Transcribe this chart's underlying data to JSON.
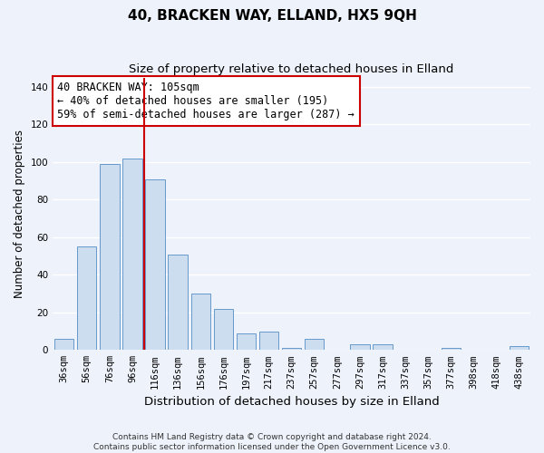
{
  "title": "40, BRACKEN WAY, ELLAND, HX5 9QH",
  "subtitle": "Size of property relative to detached houses in Elland",
  "xlabel": "Distribution of detached houses by size in Elland",
  "ylabel": "Number of detached properties",
  "bar_labels": [
    "36sqm",
    "56sqm",
    "76sqm",
    "96sqm",
    "116sqm",
    "136sqm",
    "156sqm",
    "176sqm",
    "197sqm",
    "217sqm",
    "237sqm",
    "257sqm",
    "277sqm",
    "297sqm",
    "317sqm",
    "337sqm",
    "357sqm",
    "377sqm",
    "398sqm",
    "418sqm",
    "438sqm"
  ],
  "bar_values": [
    6,
    55,
    99,
    102,
    91,
    51,
    30,
    22,
    9,
    10,
    1,
    6,
    0,
    3,
    3,
    0,
    0,
    1,
    0,
    0,
    2
  ],
  "bar_color": "#ccddf0",
  "bar_edge_color": "#6699cc",
  "marker_label": "40 BRACKEN WAY: 105sqm",
  "annotation_line1": "← 40% of detached houses are smaller (195)",
  "annotation_line2": "59% of semi-detached houses are larger (287) →",
  "vline_color": "#cc0000",
  "vline_x": 3.5,
  "ylim": [
    0,
    145
  ],
  "yticks": [
    0,
    20,
    40,
    60,
    80,
    100,
    120,
    140
  ],
  "annotation_box_facecolor": "#ffffff",
  "annotation_box_edgecolor": "#cc0000",
  "footer_line1": "Contains HM Land Registry data © Crown copyright and database right 2024.",
  "footer_line2": "Contains public sector information licensed under the Open Government Licence v3.0.",
  "background_color": "#eef2fa",
  "grid_color": "#ffffff",
  "title_fontsize": 11,
  "subtitle_fontsize": 9.5,
  "xlabel_fontsize": 9.5,
  "ylabel_fontsize": 8.5,
  "tick_fontsize": 7.5,
  "footer_fontsize": 6.5,
  "annotation_fontsize": 8.5
}
